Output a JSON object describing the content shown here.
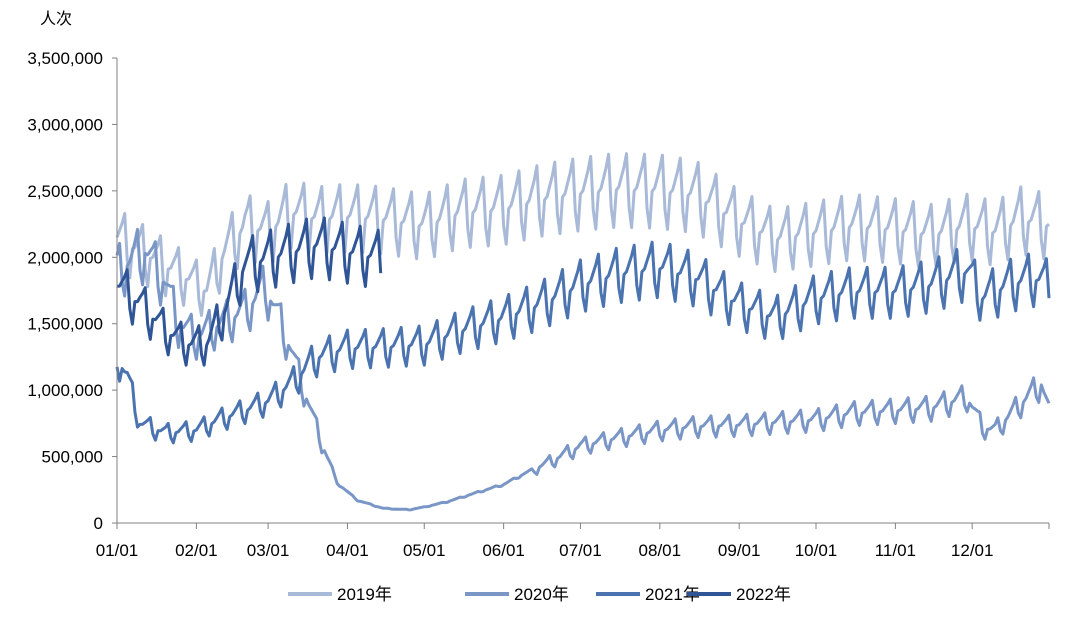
{
  "chart_data": {
    "type": "line",
    "title": "",
    "ylabel": "人次",
    "xlabel": "",
    "ylim": [
      0,
      3500000
    ],
    "yticks": [
      0,
      500000,
      1000000,
      1500000,
      2000000,
      2500000,
      3000000,
      3500000
    ],
    "ytick_labels": [
      "0",
      "500,000",
      "1,000,000",
      "1,500,000",
      "2,000,000",
      "2,500,000",
      "3,000,000",
      "3,500,000"
    ],
    "xlim": [
      "01/01",
      "12/31"
    ],
    "xticks": [
      "01/01",
      "02/01",
      "03/01",
      "04/01",
      "05/01",
      "06/01",
      "07/01",
      "08/01",
      "09/01",
      "10/01",
      "11/01",
      "12/01"
    ],
    "grid": false,
    "legend_position": "bottom",
    "weekly_pattern": [
      1.0,
      1.03,
      1.06,
      1.1,
      0.94,
      0.88,
      0.99
    ],
    "series": [
      {
        "name": "2019年",
        "color": "#A9BAD8",
        "end": "12/31",
        "keypoints": [
          [
            "01/01",
            2150000
          ],
          [
            "01/15",
            2000000
          ],
          [
            "01/28",
            1850000
          ],
          [
            "02/05",
            1750000
          ],
          [
            "02/12",
            2050000
          ],
          [
            "02/20",
            2250000
          ],
          [
            "03/01",
            2200000
          ],
          [
            "03/10",
            2350000
          ],
          [
            "03/20",
            2300000
          ],
          [
            "04/01",
            2320000
          ],
          [
            "04/15",
            2300000
          ],
          [
            "05/01",
            2250000
          ],
          [
            "05/15",
            2350000
          ],
          [
            "06/01",
            2380000
          ],
          [
            "06/15",
            2450000
          ],
          [
            "07/01",
            2500000
          ],
          [
            "07/15",
            2530000
          ],
          [
            "08/01",
            2520000
          ],
          [
            "08/15",
            2480000
          ],
          [
            "09/01",
            2280000
          ],
          [
            "09/15",
            2150000
          ],
          [
            "10/01",
            2200000
          ],
          [
            "10/15",
            2250000
          ],
          [
            "11/01",
            2220000
          ],
          [
            "11/15",
            2180000
          ],
          [
            "11/29",
            2250000
          ],
          [
            "12/10",
            2200000
          ],
          [
            "12/20",
            2300000
          ],
          [
            "12/31",
            2250000
          ]
        ]
      },
      {
        "name": "2020年",
        "color": "#7A96C6",
        "end": "12/31",
        "keypoints": [
          [
            "01/01",
            1900000
          ],
          [
            "01/12",
            2050000
          ],
          [
            "01/20",
            1800000
          ],
          [
            "01/25",
            1500000
          ],
          [
            "02/01",
            1400000
          ],
          [
            "02/10",
            1500000
          ],
          [
            "02/20",
            1600000
          ],
          [
            "02/28",
            1780000
          ],
          [
            "03/05",
            1550000
          ],
          [
            "03/10",
            1300000
          ],
          [
            "03/15",
            1000000
          ],
          [
            "03/22",
            600000
          ],
          [
            "03/28",
            300000
          ],
          [
            "04/05",
            170000
          ],
          [
            "04/15",
            110000
          ],
          [
            "04/25",
            100000
          ],
          [
            "05/01",
            120000
          ],
          [
            "05/10",
            160000
          ],
          [
            "05/20",
            220000
          ],
          [
            "06/01",
            290000
          ],
          [
            "06/10",
            380000
          ],
          [
            "06/20",
            470000
          ],
          [
            "07/01",
            580000
          ],
          [
            "07/15",
            640000
          ],
          [
            "08/01",
            700000
          ],
          [
            "08/15",
            730000
          ],
          [
            "09/01",
            740000
          ],
          [
            "09/15",
            760000
          ],
          [
            "10/01",
            780000
          ],
          [
            "10/15",
            830000
          ],
          [
            "11/01",
            850000
          ],
          [
            "11/15",
            870000
          ],
          [
            "11/29",
            950000
          ],
          [
            "12/05",
            720000
          ],
          [
            "12/10",
            700000
          ],
          [
            "12/20",
            900000
          ],
          [
            "12/28",
            1050000
          ],
          [
            "12/31",
            850000
          ]
        ]
      },
      {
        "name": "2021年",
        "color": "#4A73B0",
        "end": "12/31",
        "keypoints": [
          [
            "01/01",
            1250000
          ],
          [
            "01/05",
            1100000
          ],
          [
            "01/10",
            750000
          ],
          [
            "01/20",
            680000
          ],
          [
            "02/01",
            700000
          ],
          [
            "02/10",
            780000
          ],
          [
            "02/20",
            850000
          ],
          [
            "03/01",
            920000
          ],
          [
            "03/10",
            1050000
          ],
          [
            "03/20",
            1250000
          ],
          [
            "03/28",
            1300000
          ],
          [
            "04/01",
            1320000
          ],
          [
            "04/15",
            1330000
          ],
          [
            "05/01",
            1350000
          ],
          [
            "05/15",
            1450000
          ],
          [
            "06/01",
            1550000
          ],
          [
            "06/15",
            1650000
          ],
          [
            "07/01",
            1800000
          ],
          [
            "07/15",
            1880000
          ],
          [
            "08/01",
            1930000
          ],
          [
            "08/15",
            1850000
          ],
          [
            "09/01",
            1650000
          ],
          [
            "09/15",
            1550000
          ],
          [
            "10/01",
            1700000
          ],
          [
            "10/15",
            1750000
          ],
          [
            "11/01",
            1750000
          ],
          [
            "11/15",
            1800000
          ],
          [
            "11/29",
            1900000
          ],
          [
            "12/05",
            1700000
          ],
          [
            "12/15",
            1800000
          ],
          [
            "12/25",
            1850000
          ],
          [
            "12/31",
            1800000
          ]
        ]
      },
      {
        "name": "2022年",
        "color": "#2F5597",
        "end": "04/14",
        "keypoints": [
          [
            "01/01",
            1800000
          ],
          [
            "01/10",
            1650000
          ],
          [
            "01/20",
            1450000
          ],
          [
            "01/28",
            1350000
          ],
          [
            "02/05",
            1350000
          ],
          [
            "02/12",
            1600000
          ],
          [
            "02/20",
            1950000
          ],
          [
            "03/01",
            2000000
          ],
          [
            "03/10",
            2050000
          ],
          [
            "03/20",
            2100000
          ],
          [
            "04/01",
            2050000
          ],
          [
            "04/14",
            2000000
          ]
        ]
      }
    ]
  }
}
